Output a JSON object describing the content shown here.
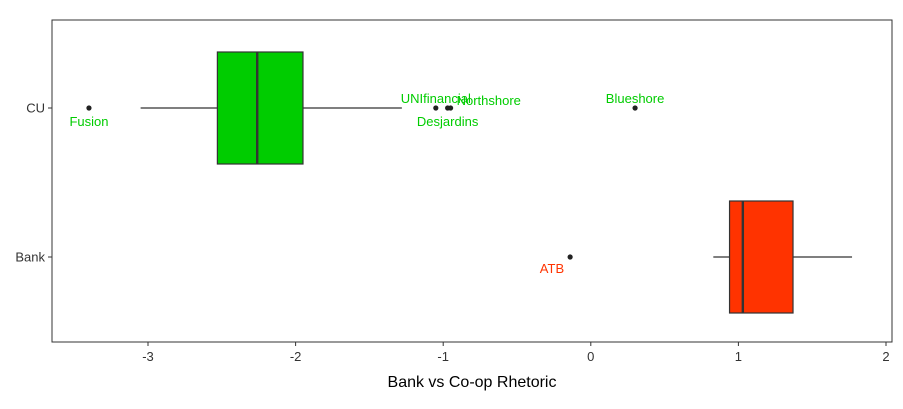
{
  "chart_data": {
    "type": "boxplot",
    "title": "",
    "xlabel": "Bank vs Co-op Rhetoric",
    "ylabel": "",
    "xlim": [
      -3.65,
      2.05
    ],
    "xticks": [
      -3,
      -2,
      -1,
      0,
      1,
      2
    ],
    "xtick_labels": [
      "-3",
      "-2",
      "-1",
      "0",
      "1",
      "2"
    ],
    "grid": false,
    "categories": [
      "CU",
      "Bank"
    ],
    "boxes": [
      {
        "category": "CU",
        "color": "#00cc00",
        "whisker_low": -3.05,
        "q1": -2.53,
        "median": -2.26,
        "q3": -1.95,
        "whisker_high": -1.28
      },
      {
        "category": "Bank",
        "color": "#ff3300",
        "whisker_low": 0.83,
        "q1": 0.94,
        "median": 1.03,
        "q3": 1.37,
        "whisker_high": 1.77
      }
    ],
    "labeled_points": [
      {
        "category": "CU",
        "x": -3.4,
        "label": "Fusion",
        "color": "#00cc00",
        "anchor": "below"
      },
      {
        "category": "CU",
        "x": -1.05,
        "label": "UNIfinancial",
        "color": "#00cc00",
        "anchor": "above"
      },
      {
        "category": "CU",
        "x": -0.97,
        "label": "Desjardins",
        "color": "#00cc00",
        "anchor": "below"
      },
      {
        "category": "CU",
        "x": -0.95,
        "label": "Northshore",
        "color": "#00cc00",
        "anchor": "right"
      },
      {
        "category": "CU",
        "x": 0.3,
        "label": "Blueshore",
        "color": "#00cc00",
        "anchor": "above"
      },
      {
        "category": "Bank",
        "x": -0.14,
        "label": "ATB",
        "color": "#ff3300",
        "anchor": "below-left"
      }
    ]
  }
}
